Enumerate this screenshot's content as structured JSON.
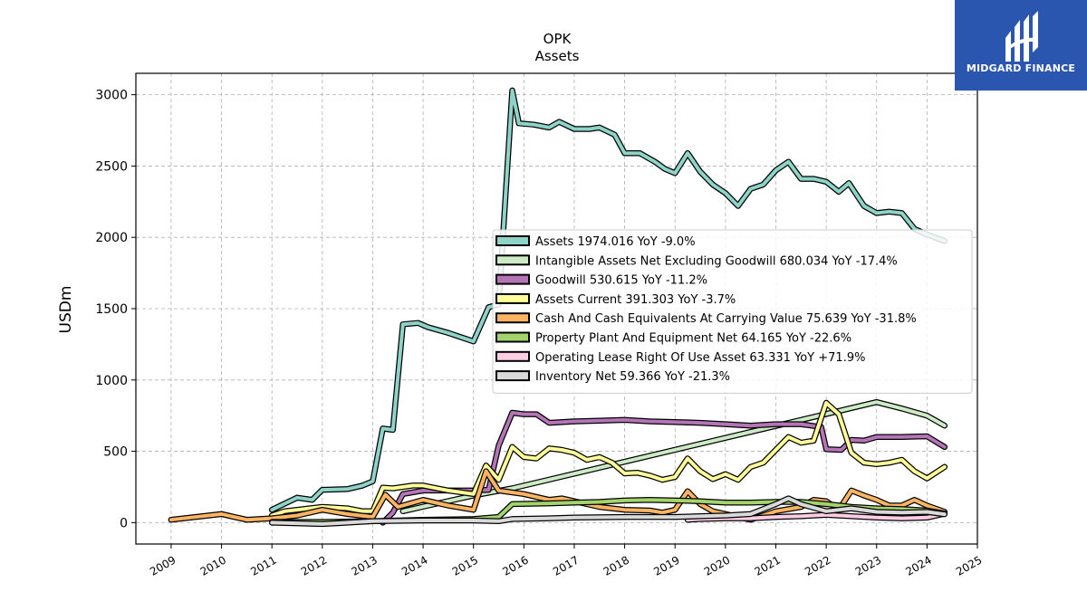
{
  "brand": {
    "name": "MIDGARD FINANCE",
    "bg_color": "#2a56b0",
    "icon": "midgard-logo-icon"
  },
  "chart_data": {
    "type": "line",
    "title": "OPK",
    "subtitle": "Assets",
    "ylabel": "USDm",
    "xlabel": "",
    "xlim": [
      2008.3,
      2025.0
    ],
    "ylim": [
      -150,
      3150
    ],
    "yticks": [
      0,
      500,
      1000,
      1500,
      2000,
      2500,
      3000
    ],
    "xticks": [
      2009,
      2010,
      2011,
      2012,
      2013,
      2014,
      2015,
      2016,
      2017,
      2018,
      2019,
      2020,
      2021,
      2022,
      2023,
      2024,
      2025
    ],
    "grid": true,
    "legend_position": "center-right",
    "series": [
      {
        "name": "Assets",
        "legend": "Assets  1974.016 YoY -9.0%",
        "color": "#8dd3c7",
        "points": [
          [
            2011.0,
            90
          ],
          [
            2011.5,
            175
          ],
          [
            2011.8,
            160
          ],
          [
            2012.0,
            230
          ],
          [
            2012.5,
            235
          ],
          [
            2012.8,
            260
          ],
          [
            2013.0,
            290
          ],
          [
            2013.2,
            660
          ],
          [
            2013.4,
            650
          ],
          [
            2013.6,
            1390
          ],
          [
            2013.9,
            1400
          ],
          [
            2014.1,
            1370
          ],
          [
            2014.5,
            1330
          ],
          [
            2015.0,
            1270
          ],
          [
            2015.3,
            1510
          ],
          [
            2015.5,
            1530
          ],
          [
            2015.77,
            3030
          ],
          [
            2015.9,
            2800
          ],
          [
            2016.2,
            2790
          ],
          [
            2016.5,
            2770
          ],
          [
            2016.7,
            2810
          ],
          [
            2017.0,
            2760
          ],
          [
            2017.3,
            2760
          ],
          [
            2017.5,
            2770
          ],
          [
            2017.8,
            2720
          ],
          [
            2018.0,
            2590
          ],
          [
            2018.3,
            2590
          ],
          [
            2018.6,
            2530
          ],
          [
            2018.8,
            2480
          ],
          [
            2019.0,
            2450
          ],
          [
            2019.25,
            2590
          ],
          [
            2019.5,
            2460
          ],
          [
            2019.75,
            2370
          ],
          [
            2020.0,
            2310
          ],
          [
            2020.25,
            2220
          ],
          [
            2020.5,
            2340
          ],
          [
            2020.75,
            2370
          ],
          [
            2021.0,
            2470
          ],
          [
            2021.25,
            2530
          ],
          [
            2021.5,
            2410
          ],
          [
            2021.75,
            2410
          ],
          [
            2022.0,
            2390
          ],
          [
            2022.25,
            2320
          ],
          [
            2022.45,
            2380
          ],
          [
            2022.75,
            2220
          ],
          [
            2023.0,
            2170
          ],
          [
            2023.25,
            2180
          ],
          [
            2023.5,
            2170
          ],
          [
            2023.75,
            2060
          ],
          [
            2024.0,
            2020
          ],
          [
            2024.35,
            1974
          ]
        ]
      },
      {
        "name": "Intangible Assets Net Excluding Goodwill",
        "legend": "Intangible Assets Net Excluding Goodwill  680.034 YoY -17.4%",
        "color": "#ccebc5",
        "points": [
          [
            2013.6,
            80
          ],
          [
            2014.1,
            120
          ],
          [
            2015.0,
            190
          ],
          [
            2015.77,
            240
          ],
          [
            2023.0,
            845
          ],
          [
            2023.5,
            800
          ],
          [
            2024.0,
            750
          ],
          [
            2024.35,
            680
          ]
        ]
      },
      {
        "name": "Goodwill",
        "legend": "Goodwill  530.615 YoY -11.2%",
        "color": "#b574b6",
        "points": [
          [
            2013.2,
            0
          ],
          [
            2013.4,
            70
          ],
          [
            2013.6,
            200
          ],
          [
            2014.0,
            225
          ],
          [
            2014.5,
            225
          ],
          [
            2015.0,
            225
          ],
          [
            2015.3,
            230
          ],
          [
            2015.5,
            540
          ],
          [
            2015.77,
            770
          ],
          [
            2016.0,
            760
          ],
          [
            2016.25,
            760
          ],
          [
            2016.5,
            700
          ],
          [
            2017.0,
            710
          ],
          [
            2017.5,
            715
          ],
          [
            2018.0,
            720
          ],
          [
            2018.5,
            710
          ],
          [
            2019.0,
            705
          ],
          [
            2019.5,
            700
          ],
          [
            2020.0,
            690
          ],
          [
            2020.5,
            680
          ],
          [
            2021.0,
            690
          ],
          [
            2021.5,
            690
          ],
          [
            2021.9,
            670
          ],
          [
            2022.0,
            515
          ],
          [
            2022.3,
            510
          ],
          [
            2022.5,
            580
          ],
          [
            2022.75,
            575
          ],
          [
            2023.0,
            600
          ],
          [
            2023.5,
            600
          ],
          [
            2024.0,
            605
          ],
          [
            2024.35,
            530
          ]
        ]
      },
      {
        "name": "Assets Current",
        "legend": "Assets Current  391.303 YoY -3.7%",
        "color": "#ffff99",
        "points": [
          [
            2011.0,
            50
          ],
          [
            2011.25,
            80
          ],
          [
            2011.5,
            90
          ],
          [
            2012.0,
            110
          ],
          [
            2012.5,
            100
          ],
          [
            2012.8,
            80
          ],
          [
            2013.0,
            80
          ],
          [
            2013.2,
            245
          ],
          [
            2013.4,
            240
          ],
          [
            2013.8,
            260
          ],
          [
            2014.0,
            260
          ],
          [
            2014.5,
            225
          ],
          [
            2015.0,
            200
          ],
          [
            2015.25,
            400
          ],
          [
            2015.5,
            300
          ],
          [
            2015.77,
            530
          ],
          [
            2016.0,
            460
          ],
          [
            2016.25,
            450
          ],
          [
            2016.5,
            520
          ],
          [
            2016.75,
            510
          ],
          [
            2017.0,
            490
          ],
          [
            2017.25,
            440
          ],
          [
            2017.5,
            460
          ],
          [
            2017.75,
            420
          ],
          [
            2018.0,
            345
          ],
          [
            2018.25,
            350
          ],
          [
            2018.5,
            330
          ],
          [
            2018.75,
            300
          ],
          [
            2019.0,
            320
          ],
          [
            2019.25,
            450
          ],
          [
            2019.5,
            360
          ],
          [
            2019.75,
            305
          ],
          [
            2020.0,
            340
          ],
          [
            2020.25,
            300
          ],
          [
            2020.5,
            390
          ],
          [
            2020.75,
            420
          ],
          [
            2021.0,
            510
          ],
          [
            2021.25,
            600
          ],
          [
            2021.5,
            560
          ],
          [
            2021.75,
            575
          ],
          [
            2022.0,
            840
          ],
          [
            2022.25,
            760
          ],
          [
            2022.5,
            490
          ],
          [
            2022.75,
            420
          ],
          [
            2023.0,
            410
          ],
          [
            2023.25,
            420
          ],
          [
            2023.5,
            440
          ],
          [
            2023.75,
            360
          ],
          [
            2024.0,
            310
          ],
          [
            2024.35,
            391
          ]
        ]
      },
      {
        "name": "Cash And Cash Equivalents At Carrying Value",
        "legend": "Cash And Cash Equivalents At Carrying Value  75.639 YoY -31.8%",
        "color": "#fdb462",
        "points": [
          [
            2009.0,
            20
          ],
          [
            2010.0,
            60
          ],
          [
            2010.5,
            20
          ],
          [
            2011.0,
            30
          ],
          [
            2011.5,
            50
          ],
          [
            2012.0,
            90
          ],
          [
            2012.5,
            60
          ],
          [
            2013.0,
            40
          ],
          [
            2013.25,
            195
          ],
          [
            2013.5,
            110
          ],
          [
            2014.0,
            160
          ],
          [
            2014.5,
            120
          ],
          [
            2015.0,
            90
          ],
          [
            2015.25,
            360
          ],
          [
            2015.5,
            225
          ],
          [
            2016.0,
            200
          ],
          [
            2016.5,
            160
          ],
          [
            2016.75,
            170
          ],
          [
            2017.0,
            150
          ],
          [
            2017.5,
            110
          ],
          [
            2018.0,
            90
          ],
          [
            2018.5,
            85
          ],
          [
            2018.75,
            70
          ],
          [
            2019.0,
            90
          ],
          [
            2019.25,
            220
          ],
          [
            2019.5,
            130
          ],
          [
            2019.75,
            80
          ],
          [
            2020.0,
            60
          ],
          [
            2020.5,
            20
          ],
          [
            2021.0,
            80
          ],
          [
            2021.5,
            110
          ],
          [
            2021.75,
            160
          ],
          [
            2022.0,
            150
          ],
          [
            2022.25,
            90
          ],
          [
            2022.5,
            225
          ],
          [
            2022.75,
            190
          ],
          [
            2023.0,
            160
          ],
          [
            2023.25,
            120
          ],
          [
            2023.5,
            120
          ],
          [
            2023.75,
            160
          ],
          [
            2024.0,
            120
          ],
          [
            2024.35,
            76
          ]
        ]
      },
      {
        "name": "Property Plant And Equipment Net",
        "legend": "Property Plant And Equipment Net  64.165 YoY -22.6%",
        "color": "#a3d36b",
        "points": [
          [
            2011.0,
            5
          ],
          [
            2012.0,
            5
          ],
          [
            2013.0,
            10
          ],
          [
            2014.0,
            20
          ],
          [
            2015.0,
            25
          ],
          [
            2015.5,
            40
          ],
          [
            2015.77,
            130
          ],
          [
            2016.5,
            135
          ],
          [
            2017.0,
            140
          ],
          [
            2017.5,
            145
          ],
          [
            2018.0,
            155
          ],
          [
            2018.5,
            160
          ],
          [
            2019.0,
            155
          ],
          [
            2019.5,
            150
          ],
          [
            2020.0,
            140
          ],
          [
            2020.5,
            140
          ],
          [
            2021.0,
            145
          ],
          [
            2021.5,
            145
          ],
          [
            2022.0,
            130
          ],
          [
            2022.5,
            110
          ],
          [
            2023.0,
            100
          ],
          [
            2023.5,
            95
          ],
          [
            2024.0,
            85
          ],
          [
            2024.35,
            64
          ]
        ]
      },
      {
        "name": "Operating Lease Right Of Use Asset",
        "legend": "Operating Lease Right Of Use Asset  63.331 YoY +71.9%",
        "color": "#fccde5",
        "points": [
          [
            2019.25,
            20
          ],
          [
            2019.5,
            25
          ],
          [
            2020.0,
            30
          ],
          [
            2020.5,
            30
          ],
          [
            2021.0,
            40
          ],
          [
            2021.5,
            45
          ],
          [
            2022.0,
            55
          ],
          [
            2022.5,
            45
          ],
          [
            2023.0,
            35
          ],
          [
            2023.5,
            30
          ],
          [
            2024.0,
            35
          ],
          [
            2024.35,
            63
          ]
        ]
      },
      {
        "name": "Inventory Net",
        "legend": "Inventory Net  59.366 YoY -21.3%",
        "color": "#d9d9d9",
        "points": [
          [
            2011.0,
            0
          ],
          [
            2012.0,
            -10
          ],
          [
            2013.0,
            10
          ],
          [
            2014.0,
            15
          ],
          [
            2015.0,
            15
          ],
          [
            2015.5,
            10
          ],
          [
            2015.77,
            25
          ],
          [
            2016.5,
            30
          ],
          [
            2017.0,
            35
          ],
          [
            2018.0,
            40
          ],
          [
            2019.0,
            40
          ],
          [
            2019.5,
            45
          ],
          [
            2020.0,
            50
          ],
          [
            2020.5,
            60
          ],
          [
            2021.0,
            130
          ],
          [
            2021.25,
            170
          ],
          [
            2021.5,
            130
          ],
          [
            2022.0,
            80
          ],
          [
            2022.5,
            100
          ],
          [
            2023.0,
            75
          ],
          [
            2023.5,
            70
          ],
          [
            2024.0,
            75
          ],
          [
            2024.35,
            59
          ]
        ]
      }
    ]
  }
}
